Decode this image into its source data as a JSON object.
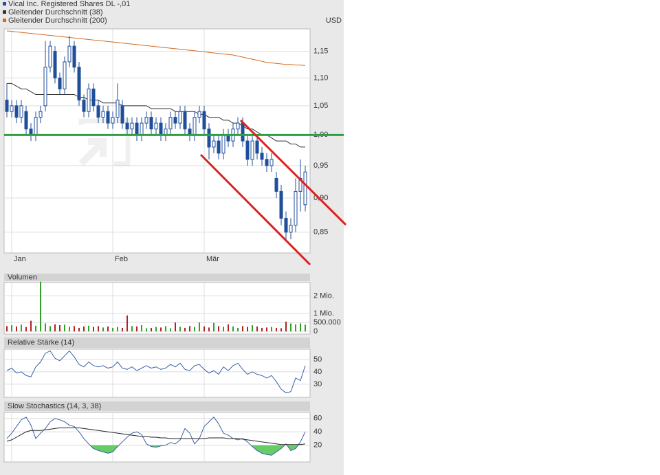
{
  "chart_data": [
    {
      "type": "candlestick",
      "name": "Vical Inc. Registered Shares DL -,01",
      "color": "#1f4e9a",
      "unit": "USD",
      "categories": [
        null,
        "Jan",
        null,
        null,
        null,
        null,
        null,
        null,
        null,
        null,
        null,
        null,
        null,
        null,
        null,
        null,
        null,
        null,
        null,
        null,
        null,
        null,
        "Feb",
        null,
        null,
        null,
        null,
        null,
        null,
        null,
        null,
        null,
        null,
        null,
        null,
        null,
        null,
        null,
        null,
        null,
        null,
        "Mär",
        null,
        null,
        null,
        null,
        null,
        null,
        null,
        null,
        null,
        null,
        null,
        null,
        null,
        null,
        null,
        null,
        null,
        null,
        null,
        null,
        null
      ],
      "open": [
        1.06,
        1.04,
        1.05,
        1.03,
        1.04,
        1.01,
        1.0,
        1.03,
        1.05,
        1.12,
        1.15,
        1.1,
        1.08,
        1.13,
        1.16,
        1.12,
        1.06,
        1.04,
        1.08,
        1.05,
        1.03,
        1.04,
        1.02,
        1.03,
        1.05,
        1.02,
        1.01,
        1.02,
        1.0,
        1.02,
        1.03,
        1.01,
        1.02,
        1.0,
        1.01,
        1.03,
        1.02,
        1.04,
        1.01,
        1.0,
        1.03,
        1.04,
        1.01,
        0.98,
        0.99,
        0.97,
        1.0,
        0.99,
        1.01,
        1.02,
        0.99,
        0.96,
        0.99,
        0.97,
        0.96,
        0.95,
        0.93,
        0.91,
        0.87,
        0.85,
        0.86,
        0.91,
        0.89
      ],
      "high": [
        1.09,
        1.06,
        1.06,
        1.06,
        1.05,
        1.02,
        1.04,
        1.05,
        1.17,
        1.17,
        1.16,
        1.11,
        1.14,
        1.18,
        1.17,
        1.13,
        1.07,
        1.09,
        1.09,
        1.06,
        1.05,
        1.05,
        1.04,
        1.09,
        1.06,
        1.03,
        1.03,
        1.03,
        1.03,
        1.04,
        1.04,
        1.03,
        1.03,
        1.02,
        1.04,
        1.04,
        1.05,
        1.05,
        1.02,
        1.04,
        1.05,
        1.05,
        1.02,
        1.0,
        1.0,
        1.01,
        1.01,
        1.02,
        1.03,
        1.03,
        1.0,
        1.0,
        1.0,
        0.98,
        0.97,
        0.97,
        0.94,
        0.92,
        0.88,
        0.87,
        0.93,
        0.96,
        0.95
      ],
      "low": [
        1.03,
        1.03,
        1.02,
        1.02,
        1.0,
        0.99,
        0.99,
        1.02,
        1.04,
        1.11,
        1.09,
        1.07,
        1.07,
        1.12,
        1.11,
        1.05,
        1.03,
        1.03,
        1.04,
        1.02,
        1.02,
        1.01,
        1.01,
        1.02,
        1.01,
        1.0,
        1.0,
        0.99,
        0.99,
        1.01,
        1.0,
        1.0,
        0.99,
        0.99,
        1.0,
        1.01,
        1.01,
        1.0,
        0.99,
        0.99,
        1.02,
        1.0,
        0.96,
        0.97,
        0.96,
        0.96,
        0.98,
        0.98,
        1.0,
        0.98,
        0.95,
        0.95,
        0.96,
        0.95,
        0.94,
        0.94,
        0.9,
        0.86,
        0.84,
        0.84,
        0.85,
        0.88,
        0.88
      ],
      "close": [
        1.04,
        1.05,
        1.03,
        1.05,
        1.01,
        1.0,
        1.03,
        1.04,
        1.12,
        1.16,
        1.1,
        1.08,
        1.13,
        1.16,
        1.12,
        1.06,
        1.04,
        1.08,
        1.05,
        1.03,
        1.04,
        1.02,
        1.03,
        1.06,
        1.02,
        1.01,
        1.02,
        1.0,
        1.02,
        1.03,
        1.01,
        1.02,
        1.0,
        1.01,
        1.03,
        1.02,
        1.04,
        1.01,
        1.0,
        1.03,
        1.04,
        1.01,
        0.98,
        0.99,
        0.97,
        1.0,
        0.99,
        1.01,
        1.02,
        0.99,
        0.96,
        0.99,
        0.97,
        0.96,
        0.95,
        0.96,
        0.91,
        0.87,
        0.85,
        0.86,
        0.91,
        0.93,
        0.94
      ],
      "series": [
        {
          "name": "Gleitender Durchschnitt (38)",
          "color": "#333333",
          "values": [
            1.09,
            1.09,
            1.085,
            1.08,
            1.08,
            1.075,
            1.07,
            1.07,
            1.07,
            1.07,
            1.07,
            1.07,
            1.07,
            1.07,
            1.07,
            1.065,
            1.065,
            1.06,
            1.06,
            1.06,
            1.055,
            1.055,
            1.055,
            1.055,
            1.05,
            1.05,
            1.05,
            1.05,
            1.05,
            1.05,
            1.045,
            1.045,
            1.045,
            1.045,
            1.045,
            1.04,
            1.04,
            1.04,
            1.04,
            1.04,
            1.035,
            1.035,
            1.03,
            1.03,
            1.03,
            1.025,
            1.025,
            1.02,
            1.02,
            1.015,
            1.01,
            1.01,
            1.005,
            1.0,
            1.0,
            0.995,
            0.99,
            0.99,
            0.99,
            0.985,
            0.985,
            0.98,
            0.98
          ]
        },
        {
          "name": "Gleitender Durchschnitt (200)",
          "color": "#d2691e",
          "values": [
            1.19,
            1.189,
            1.188,
            1.187,
            1.186,
            1.185,
            1.184,
            1.183,
            1.182,
            1.181,
            1.18,
            1.179,
            1.178,
            1.177,
            1.176,
            1.175,
            1.174,
            1.173,
            1.172,
            1.171,
            1.17,
            1.169,
            1.168,
            1.167,
            1.166,
            1.165,
            1.164,
            1.163,
            1.162,
            1.161,
            1.16,
            1.159,
            1.158,
            1.157,
            1.156,
            1.155,
            1.154,
            1.153,
            1.152,
            1.151,
            1.15,
            1.149,
            1.148,
            1.147,
            1.146,
            1.145,
            1.144,
            1.143,
            1.141,
            1.139,
            1.137,
            1.135,
            1.133,
            1.131,
            1.129,
            1.128,
            1.127,
            1.126,
            1.125,
            1.125,
            1.124,
            1.124,
            1.123
          ]
        }
      ],
      "log_scale": true,
      "grid": true,
      "ylim": [
        0.821,
        1.194
      ],
      "yticks": [
        {
          "value": 0.85,
          "label": "0,85"
        },
        {
          "value": 0.9,
          "label": "0,90"
        },
        {
          "value": 0.95,
          "label": "0,95"
        },
        {
          "value": 1.0,
          "label": "1,00"
        },
        {
          "value": 1.05,
          "label": "1,05"
        },
        {
          "value": 1.1,
          "label": "1,10"
        },
        {
          "value": 1.15,
          "label": "1,15"
        }
      ],
      "reference_line": {
        "value": 1.0,
        "color": "#2ea043"
      }
    },
    {
      "type": "bar",
      "title": "Volumen",
      "up_color": "#33a02c",
      "down_color": "#b22222",
      "values": [
        300000,
        350000,
        280000,
        380000,
        250000,
        600000,
        320000,
        2800000,
        450000,
        300000,
        400000,
        350000,
        380000,
        260000,
        300000,
        200000,
        280000,
        320000,
        250000,
        300000,
        220000,
        280000,
        200000,
        250000,
        200000,
        900000,
        300000,
        280000,
        350000,
        180000,
        200000,
        250000,
        220000,
        300000,
        180000,
        500000,
        260000,
        200000,
        300000,
        250000,
        500000,
        280000,
        220000,
        480000,
        300000,
        260000,
        400000,
        280000,
        200000,
        300000,
        250000,
        350000,
        280000,
        200000,
        220000,
        250000,
        200000,
        180000,
        550000,
        450000,
        400000,
        450000,
        380000
      ],
      "ylim": [
        -150000,
        2750000
      ],
      "yticks": [
        0,
        {
          "value": 500000,
          "label": "500.000"
        },
        {
          "value": 1000000,
          "label": "1 Mio."
        },
        {
          "value": 2000000,
          "label": "2 Mio."
        }
      ]
    },
    {
      "type": "line",
      "title": "Relative Stärke (14)",
      "series": [
        {
          "color": "#3a5fa8",
          "values": [
            41,
            43,
            39,
            40,
            37,
            36,
            44,
            48,
            55,
            57,
            51,
            49,
            53,
            57,
            52,
            46,
            44,
            48,
            45,
            44,
            45,
            43,
            44,
            48,
            43,
            42,
            44,
            41,
            43,
            45,
            43,
            44,
            42,
            43,
            46,
            44,
            47,
            42,
            41,
            45,
            46,
            42,
            39,
            41,
            38,
            44,
            41,
            45,
            47,
            42,
            38,
            40,
            38,
            37,
            35,
            37,
            32,
            26,
            23,
            24,
            35,
            33,
            45
          ]
        }
      ],
      "ylim": [
        19.4,
        58.3
      ],
      "yticks": [
        30,
        40,
        50
      ]
    },
    {
      "type": "line",
      "title": "Slow Stochastics (14, 3, 38)",
      "fill_below": 20,
      "fill_color": "#66cc66",
      "series": [
        {
          "color": "#3a5fa8",
          "values": [
            30,
            38,
            48,
            58,
            62,
            50,
            30,
            38,
            45,
            55,
            60,
            58,
            55,
            50,
            48,
            40,
            30,
            22,
            15,
            12,
            10,
            8,
            10,
            18,
            25,
            32,
            38,
            40,
            36,
            22,
            18,
            17,
            19,
            20,
            24,
            22,
            28,
            45,
            38,
            22,
            30,
            48,
            55,
            62,
            52,
            38,
            35,
            30,
            28,
            30,
            25,
            18,
            12,
            8,
            6,
            5,
            10,
            15,
            22,
            12,
            15,
            25,
            40
          ]
        },
        {
          "color": "#222222",
          "values": [
            26,
            28,
            32,
            36,
            40,
            42,
            42,
            42,
            43,
            44,
            45,
            46,
            46,
            46,
            46,
            46,
            45,
            44,
            43,
            42,
            41,
            40,
            39,
            38,
            37,
            36,
            35,
            34,
            33,
            33,
            32,
            32,
            31,
            31,
            30,
            30,
            30,
            30,
            30,
            30,
            30,
            30,
            31,
            31,
            31,
            31,
            30,
            30,
            30,
            29,
            28,
            27,
            26,
            25,
            24,
            23,
            22,
            21,
            21,
            21,
            21,
            21,
            22
          ]
        }
      ],
      "ylim": [
        -5,
        69
      ],
      "yticks": [
        20,
        40,
        60
      ]
    }
  ]
}
